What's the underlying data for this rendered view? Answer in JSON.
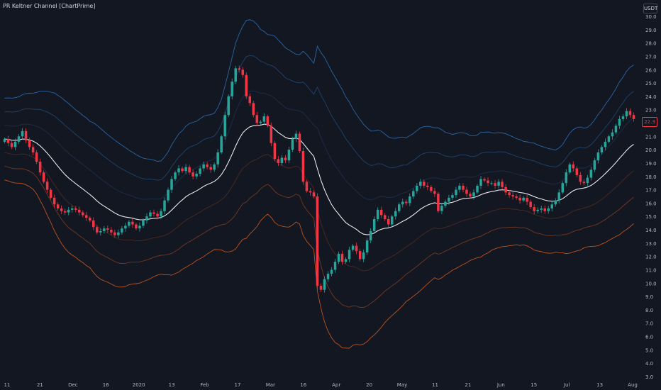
{
  "indicator": {
    "title": "PR Keltner Channel [ChartPrime]"
  },
  "currency_label": "USDT",
  "last_price_tag": "22.3",
  "colors": {
    "background": "#131722",
    "candle_up": "#26a69a",
    "candle_down": "#f23645",
    "basis": "#ffffff",
    "upper_band": "#2f79c4",
    "lower_band": "#e8621e",
    "axis_text": "#b2b5be"
  },
  "chart_data": {
    "type": "candlestick",
    "title": "PR Keltner Channel [ChartPrime]",
    "y_axis": {
      "range": [
        3.0,
        30.0
      ],
      "ticks": [
        "30.0",
        "29.0",
        "28.0",
        "27.0",
        "26.0",
        "25.0",
        "24.0",
        "23.0",
        "22.0",
        "21.0",
        "20.0",
        "19.0",
        "18.0",
        "17.0",
        "16.0",
        "15.0",
        "14.0",
        "13.0",
        "12.0",
        "11.0",
        "10.0",
        "9.0",
        "8.0",
        "7.0",
        "6.0",
        "5.0",
        "4.0",
        "3.0"
      ],
      "position": "right"
    },
    "x_axis": {
      "labels": [
        "11",
        "21",
        "Dec",
        "16",
        "2020",
        "13",
        "Feb",
        "17",
        "Mar",
        "16",
        "Apr",
        "20",
        "May",
        "11",
        "21",
        "Jun",
        "15",
        "Jul",
        "13",
        "Aug"
      ]
    },
    "close_series": [
      20.8,
      20.5,
      20.2,
      20.6,
      21.0,
      21.4,
      20.7,
      20.2,
      19.8,
      19.1,
      18.3,
      17.6,
      17.0,
      16.4,
      15.9,
      15.6,
      15.4,
      15.3,
      15.5,
      15.6,
      15.5,
      15.3,
      15.1,
      14.9,
      14.7,
      14.2,
      13.8,
      13.9,
      14.1,
      14.0,
      13.8,
      13.6,
      13.8,
      14.1,
      14.3,
      14.6,
      14.4,
      14.1,
      14.3,
      14.7,
      15.0,
      15.3,
      15.2,
      15.0,
      15.4,
      16.2,
      17.0,
      17.8,
      18.3,
      18.6,
      18.4,
      18.7,
      18.3,
      18.0,
      18.2,
      18.6,
      18.9,
      18.7,
      18.5,
      18.9,
      19.8,
      21.0,
      22.6,
      24.0,
      25.1,
      26.1,
      26.0,
      25.6,
      24.0,
      23.5,
      22.6,
      22.0,
      22.1,
      22.5,
      21.8,
      20.5,
      19.3,
      19.0,
      19.4,
      19.2,
      20.0,
      20.8,
      21.2,
      19.9,
      17.6,
      16.9,
      16.8,
      16.5,
      9.8,
      9.5,
      10.3,
      10.7,
      11.0,
      11.6,
      12.2,
      11.6,
      11.8,
      12.5,
      12.8,
      12.4,
      11.8,
      12.3,
      13.2,
      13.9,
      14.8,
      15.5,
      15.1,
      14.8,
      14.4,
      15.0,
      15.4,
      15.9,
      16.1,
      16.0,
      16.5,
      16.9,
      17.3,
      17.6,
      17.3,
      17.2,
      16.9,
      16.7,
      15.4,
      15.8,
      16.1,
      16.4,
      16.6,
      17.0,
      17.3,
      17.0,
      16.7,
      16.5,
      16.8,
      17.3,
      17.8,
      17.7,
      17.5,
      17.5,
      17.3,
      17.6,
      17.2,
      16.8,
      16.6,
      16.5,
      16.4,
      16.2,
      16.4,
      16.1,
      15.7,
      15.4,
      15.5,
      15.6,
      15.4,
      15.6,
      15.9,
      16.2,
      16.8,
      17.5,
      18.3,
      18.9,
      18.6,
      18.1,
      17.6,
      17.5,
      17.9,
      18.5,
      19.2,
      19.8,
      20.2,
      20.6,
      21.0,
      21.3,
      21.8,
      22.3,
      22.5,
      22.9,
      22.6,
      22.3
    ],
    "bands": [
      {
        "name": "upper_3",
        "color": "#2f79c4"
      },
      {
        "name": "upper_2",
        "color": "#2f79c4"
      },
      {
        "name": "upper_1",
        "color": "#2f79c4"
      },
      {
        "name": "basis",
        "color": "#ffffff"
      },
      {
        "name": "lower_1",
        "color": "#e8621e"
      },
      {
        "name": "lower_2",
        "color": "#e8621e"
      },
      {
        "name": "lower_3",
        "color": "#e8621e"
      }
    ],
    "grid": false,
    "legend": "none"
  }
}
